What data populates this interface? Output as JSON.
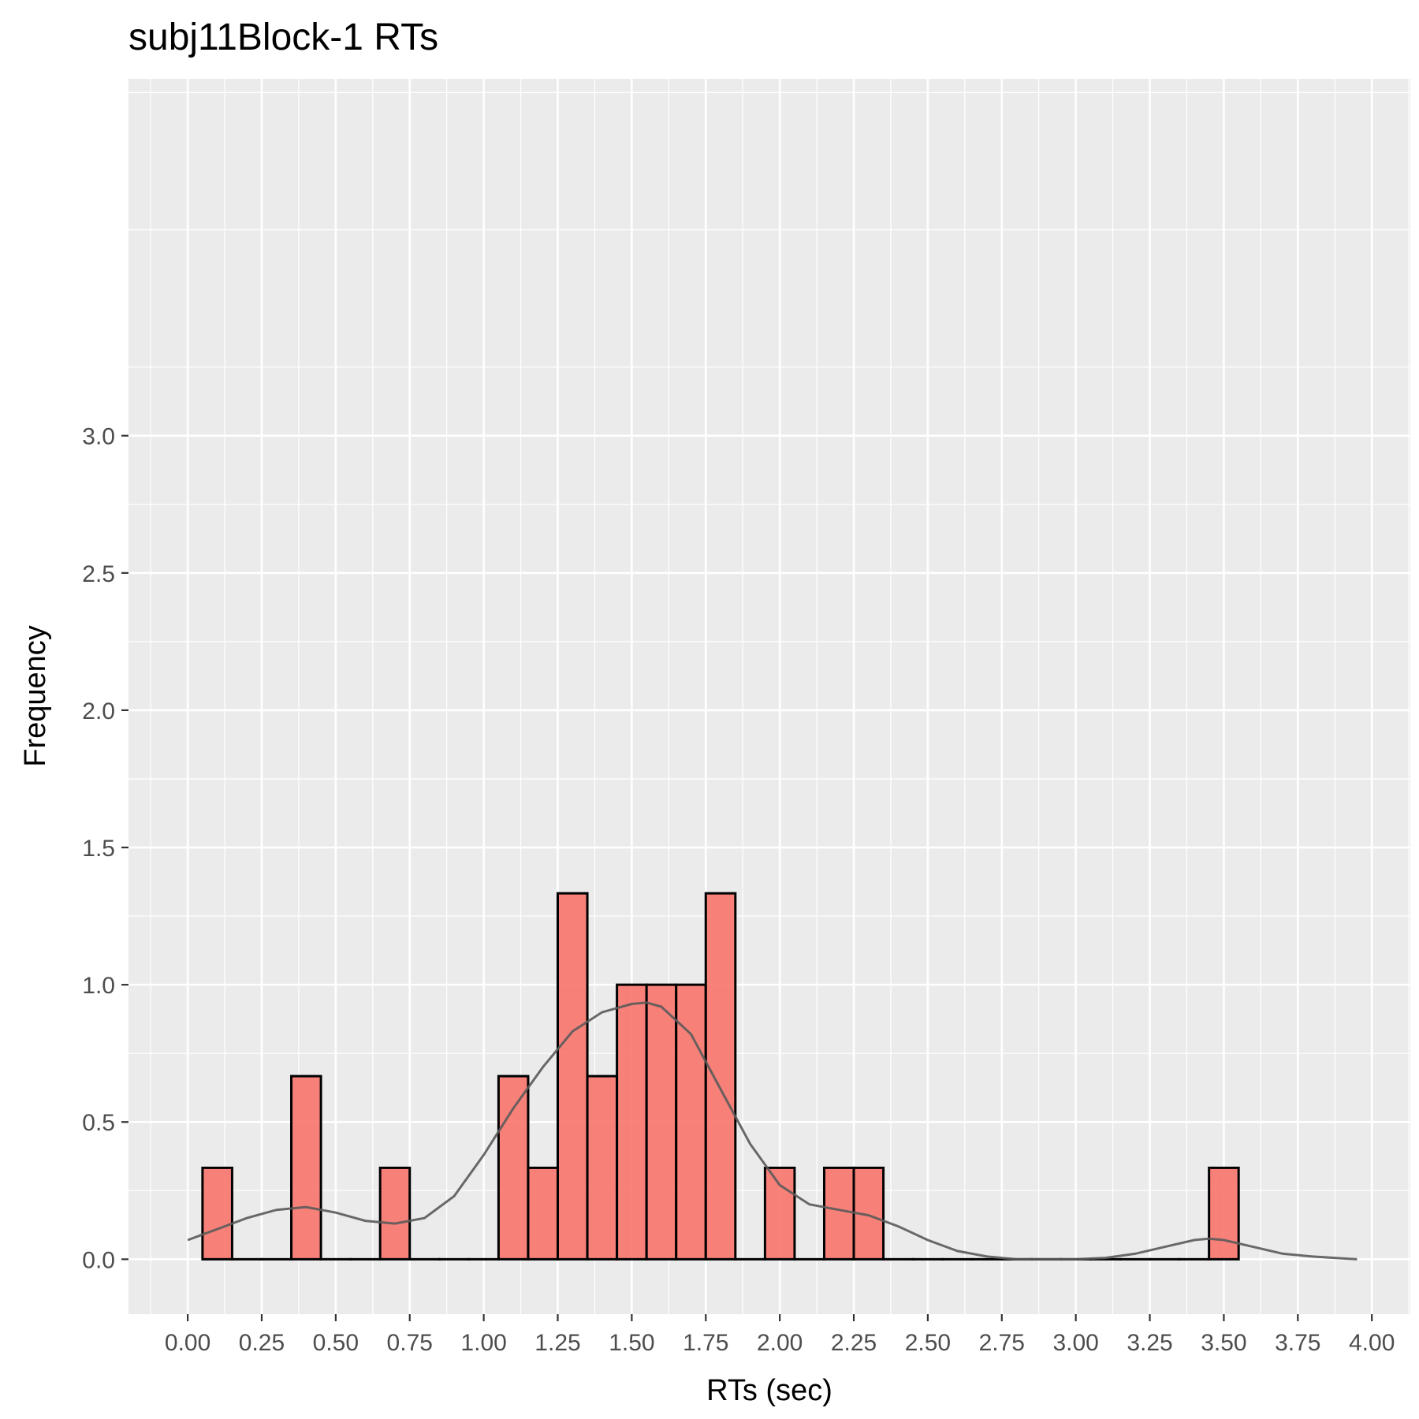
{
  "chart_data": {
    "type": "bar",
    "title": "subj11Block-1 RTs",
    "xlabel": "RTs (sec)",
    "ylabel": "Frequency",
    "xlim": [
      -0.2,
      4.13
    ],
    "ylim": [
      -0.2,
      4.3
    ],
    "x_ticks": [
      "0.00",
      "0.25",
      "0.50",
      "0.75",
      "1.00",
      "1.25",
      "1.50",
      "1.75",
      "2.00",
      "2.25",
      "2.50",
      "2.75",
      "3.00",
      "3.25",
      "3.50",
      "3.75",
      "4.00"
    ],
    "x_tick_values": [
      0.0,
      0.25,
      0.5,
      0.75,
      1.0,
      1.25,
      1.5,
      1.75,
      2.0,
      2.25,
      2.5,
      2.75,
      3.0,
      3.25,
      3.5,
      3.75,
      4.0
    ],
    "y_ticks": [
      "0.0",
      "0.5",
      "1.0",
      "1.5",
      "2.0",
      "2.5",
      "3.0"
    ],
    "y_tick_values": [
      0.0,
      0.5,
      1.0,
      1.5,
      2.0,
      2.5,
      3.0
    ],
    "bin_width": 0.1,
    "bin_starts": [
      0.05,
      0.15,
      0.25,
      0.35,
      0.45,
      0.55,
      0.65,
      0.75,
      0.85,
      0.95,
      1.05,
      1.15,
      1.25,
      1.35,
      1.45,
      1.55,
      1.65,
      1.75,
      1.85,
      1.95,
      2.05,
      2.15,
      2.25,
      2.35,
      2.45,
      2.55,
      2.65,
      2.75,
      2.85,
      2.95,
      3.05,
      3.15,
      3.25,
      3.35,
      3.45
    ],
    "values": [
      0.333,
      0,
      0,
      0.667,
      0,
      0,
      0.333,
      0,
      0,
      0,
      0.667,
      0.333,
      1.333,
      0.667,
      1.0,
      1.0,
      1.0,
      1.333,
      0,
      0.333,
      0,
      0.333,
      0.333,
      0,
      0,
      0,
      0,
      0,
      0,
      0,
      0,
      0,
      0,
      0,
      0.333
    ],
    "density": {
      "x": [
        0.0,
        0.1,
        0.2,
        0.3,
        0.4,
        0.5,
        0.6,
        0.7,
        0.8,
        0.9,
        1.0,
        1.1,
        1.2,
        1.3,
        1.4,
        1.5,
        1.55,
        1.6,
        1.7,
        1.8,
        1.9,
        2.0,
        2.1,
        2.2,
        2.3,
        2.4,
        2.5,
        2.6,
        2.7,
        2.8,
        2.9,
        3.0,
        3.1,
        3.2,
        3.3,
        3.4,
        3.45,
        3.5,
        3.6,
        3.7,
        3.8,
        3.9,
        3.95
      ],
      "y": [
        0.07,
        0.11,
        0.15,
        0.18,
        0.19,
        0.17,
        0.14,
        0.13,
        0.15,
        0.23,
        0.38,
        0.55,
        0.7,
        0.83,
        0.9,
        0.93,
        0.935,
        0.92,
        0.82,
        0.62,
        0.42,
        0.27,
        0.2,
        0.18,
        0.16,
        0.12,
        0.07,
        0.03,
        0.01,
        0.0,
        0.0,
        0.0,
        0.005,
        0.02,
        0.045,
        0.07,
        0.075,
        0.07,
        0.045,
        0.02,
        0.01,
        0.003,
        0.0
      ]
    },
    "bar_color": "#f8766d",
    "bar_opacity": 0.9,
    "bar_outline": "#000000",
    "density_color": "#5a5a5a",
    "panel_background": "#ebebeb",
    "grid": true,
    "legend": "none"
  }
}
